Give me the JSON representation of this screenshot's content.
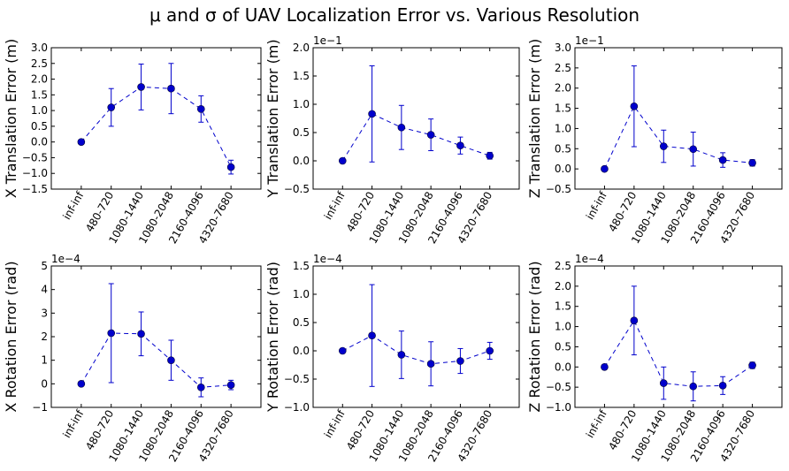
{
  "figure": {
    "title": "μ and σ of UAV Localization Error vs. Various Resolution",
    "marker_color": "#0000cc",
    "line_style": "dashed",
    "categories": [
      "inf-inf",
      "480-720",
      "1080-1440",
      "1080-2048",
      "2160-4096",
      "4320-7680"
    ]
  },
  "chart_data": [
    {
      "type": "line-errorbar",
      "ylabel": "X Translation Error (m)",
      "multiplier": "",
      "ylim": [
        -1.5,
        3.0
      ],
      "yticks": [
        -1.5,
        -1.0,
        -0.5,
        0.0,
        0.5,
        1.0,
        1.5,
        2.0,
        2.5,
        3.0
      ],
      "ytick_labels": [
        "−1.5",
        "−1.0",
        "−0.5",
        "0.0",
        "0.5",
        "1.0",
        "1.5",
        "2.0",
        "2.5",
        "3.0"
      ],
      "categories": [
        "inf-inf",
        "480-720",
        "1080-1440",
        "1080-2048",
        "2160-4096",
        "4320-7680"
      ],
      "mean": [
        0.0,
        1.1,
        1.75,
        1.7,
        1.05,
        -0.8
      ],
      "std": [
        0.0,
        0.6,
        0.73,
        0.8,
        0.42,
        0.22
      ]
    },
    {
      "type": "line-errorbar",
      "ylabel": "Y Translation Error (m)",
      "multiplier": "1e−1",
      "ylim": [
        -0.5,
        2.0
      ],
      "yticks": [
        -0.5,
        0.0,
        0.5,
        1.0,
        1.5,
        2.0
      ],
      "ytick_labels": [
        "−0.5",
        "0.0",
        "0.5",
        "1.0",
        "1.5",
        "2.0"
      ],
      "categories": [
        "inf-inf",
        "480-720",
        "1080-1440",
        "1080-2048",
        "2160-4096",
        "4320-7680"
      ],
      "mean": [
        0.0,
        0.83,
        0.59,
        0.46,
        0.27,
        0.09
      ],
      "std": [
        0.0,
        0.85,
        0.39,
        0.28,
        0.15,
        0.06
      ]
    },
    {
      "type": "line-errorbar",
      "ylabel": "Z Translation Error (m)",
      "multiplier": "1e−1",
      "ylim": [
        -0.5,
        3.0
      ],
      "yticks": [
        -0.5,
        0.0,
        0.5,
        1.0,
        1.5,
        2.0,
        2.5,
        3.0
      ],
      "ytick_labels": [
        "−0.5",
        "0.0",
        "0.5",
        "1.0",
        "1.5",
        "2.0",
        "2.5",
        "3.0"
      ],
      "categories": [
        "inf-inf",
        "480-720",
        "1080-1440",
        "1080-2048",
        "2160-4096",
        "4320-7680"
      ],
      "mean": [
        0.0,
        1.55,
        0.56,
        0.49,
        0.22,
        0.15
      ],
      "std": [
        0.0,
        1.0,
        0.4,
        0.42,
        0.18,
        0.08
      ]
    },
    {
      "type": "line-errorbar",
      "ylabel": "X Rotation Error (rad)",
      "multiplier": "1e−4",
      "ylim": [
        -1,
        5
      ],
      "yticks": [
        -1,
        0,
        1,
        2,
        3,
        4,
        5
      ],
      "ytick_labels": [
        "−1",
        "0",
        "1",
        "2",
        "3",
        "4",
        "5"
      ],
      "categories": [
        "inf-inf",
        "480-720",
        "1080-1440",
        "1080-2048",
        "2160-4096",
        "4320-7680"
      ],
      "mean": [
        0.0,
        2.15,
        2.12,
        1.0,
        -0.15,
        -0.05
      ],
      "std": [
        0.0,
        2.1,
        0.93,
        0.85,
        0.4,
        0.2
      ]
    },
    {
      "type": "line-errorbar",
      "ylabel": "Y Rotation Error (rad)",
      "multiplier": "1e−4",
      "ylim": [
        -1.0,
        1.5
      ],
      "yticks": [
        -1.0,
        -0.5,
        0.0,
        0.5,
        1.0,
        1.5
      ],
      "ytick_labels": [
        "−1.0",
        "−0.5",
        "0.0",
        "0.5",
        "1.0",
        "1.5"
      ],
      "categories": [
        "inf-inf",
        "480-720",
        "1080-1440",
        "1080-2048",
        "2160-4096",
        "4320-7680"
      ],
      "mean": [
        0.0,
        0.27,
        -0.07,
        -0.23,
        -0.18,
        0.0
      ],
      "std": [
        0.0,
        0.9,
        0.42,
        0.39,
        0.22,
        0.15
      ]
    },
    {
      "type": "line-errorbar",
      "ylabel": "Z Rotation Error (rad)",
      "multiplier": "1e−4",
      "ylim": [
        -1.0,
        2.5
      ],
      "yticks": [
        -1.0,
        -0.5,
        0.0,
        0.5,
        1.0,
        1.5,
        2.0,
        2.5
      ],
      "ytick_labels": [
        "−1.0",
        "−0.5",
        "0.0",
        "0.5",
        "1.0",
        "1.5",
        "2.0",
        "2.5"
      ],
      "categories": [
        "inf-inf",
        "480-720",
        "1080-1440",
        "1080-2048",
        "2160-4096",
        "4320-7680"
      ],
      "mean": [
        0.0,
        1.15,
        -0.4,
        -0.48,
        -0.46,
        0.04
      ],
      "std": [
        0.0,
        0.85,
        0.4,
        0.36,
        0.22,
        0.08
      ]
    }
  ]
}
